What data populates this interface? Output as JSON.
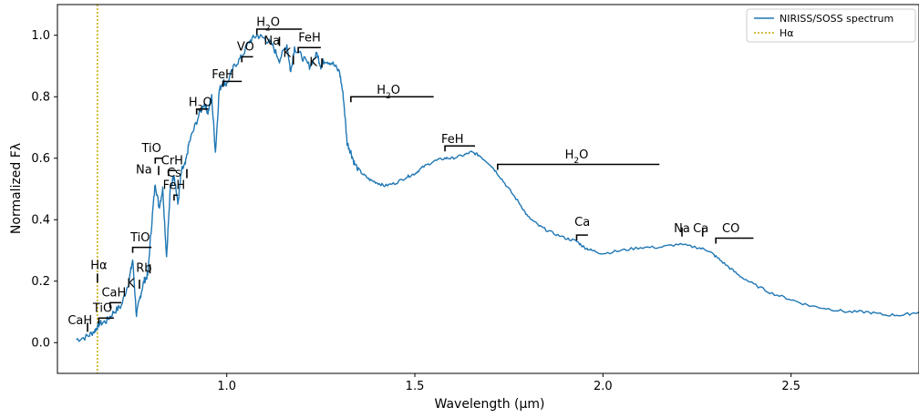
{
  "chart_data": {
    "type": "line",
    "xlabel": "Wavelength (μm)",
    "ylabel": "Normalized Fλ",
    "xlim": [
      0.55,
      2.84
    ],
    "ylim": [
      -0.1,
      1.1
    ],
    "xticks": [
      1.0,
      1.5,
      2.0,
      2.5
    ],
    "xtick_labels": [
      "1.0",
      "1.5",
      "2.0",
      "2.5"
    ],
    "yticks": [
      0.0,
      0.2,
      0.4,
      0.6,
      0.8,
      1.0
    ],
    "ytick_labels": [
      "0.0",
      "0.2",
      "0.4",
      "0.6",
      "0.8",
      "1.0"
    ],
    "grid": false,
    "legend_position": "top-right",
    "colors": {
      "spectrum": "#1f77b4",
      "halpha": "#c9a800",
      "bracket": "#000000"
    },
    "series": [
      {
        "name": "NIRISS/SOSS spectrum",
        "style": "solid",
        "x": [
          0.6,
          0.63,
          0.65,
          0.66,
          0.68,
          0.7,
          0.72,
          0.74,
          0.75,
          0.76,
          0.77,
          0.78,
          0.79,
          0.8,
          0.81,
          0.82,
          0.83,
          0.84,
          0.85,
          0.86,
          0.87,
          0.88,
          0.89,
          0.9,
          0.92,
          0.94,
          0.95,
          0.96,
          0.97,
          0.98,
          0.99,
          1.0,
          1.02,
          1.04,
          1.06,
          1.08,
          1.1,
          1.12,
          1.14,
          1.16,
          1.17,
          1.18,
          1.2,
          1.22,
          1.24,
          1.25,
          1.26,
          1.28,
          1.3,
          1.31,
          1.32,
          1.33,
          1.34,
          1.36,
          1.38,
          1.4,
          1.42,
          1.45,
          1.48,
          1.5,
          1.52,
          1.55,
          1.58,
          1.6,
          1.63,
          1.65,
          1.67,
          1.7,
          1.72,
          1.75,
          1.78,
          1.8,
          1.83,
          1.86,
          1.9,
          1.93,
          1.95,
          1.97,
          2.0,
          2.05,
          2.1,
          2.15,
          2.2,
          2.25,
          2.28,
          2.3,
          2.33,
          2.36,
          2.4,
          2.45,
          2.5,
          2.55,
          2.6,
          2.65,
          2.7,
          2.75,
          2.8,
          2.84
        ],
        "values": [
          0.01,
          0.02,
          0.04,
          0.06,
          0.07,
          0.1,
          0.12,
          0.2,
          0.27,
          0.09,
          0.15,
          0.2,
          0.22,
          0.38,
          0.52,
          0.44,
          0.5,
          0.28,
          0.5,
          0.55,
          0.45,
          0.56,
          0.58,
          0.65,
          0.72,
          0.78,
          0.75,
          0.8,
          0.62,
          0.82,
          0.85,
          0.84,
          0.9,
          0.93,
          0.98,
          1.0,
          0.99,
          0.97,
          0.92,
          0.97,
          0.88,
          0.96,
          0.93,
          0.9,
          0.94,
          0.9,
          0.92,
          0.91,
          0.88,
          0.8,
          0.65,
          0.62,
          0.58,
          0.55,
          0.53,
          0.52,
          0.51,
          0.52,
          0.54,
          0.55,
          0.57,
          0.59,
          0.6,
          0.6,
          0.61,
          0.62,
          0.61,
          0.58,
          0.55,
          0.5,
          0.45,
          0.41,
          0.38,
          0.36,
          0.34,
          0.33,
          0.31,
          0.3,
          0.29,
          0.3,
          0.31,
          0.31,
          0.32,
          0.31,
          0.3,
          0.28,
          0.25,
          0.22,
          0.19,
          0.16,
          0.14,
          0.12,
          0.11,
          0.1,
          0.1,
          0.09,
          0.09,
          0.1
        ]
      },
      {
        "name": "Hα",
        "style": "dotted",
        "vline_x": 0.6563
      }
    ],
    "annotations": [
      {
        "text": "CaH",
        "x": 0.61,
        "y": 0.06,
        "mark": "tick",
        "mx": 0.63,
        "my": 0.05
      },
      {
        "text": "TiO",
        "x": 0.67,
        "y": 0.1,
        "mark": "bracket",
        "x1": 0.66,
        "x2": 0.7,
        "my": 0.08
      },
      {
        "text": "CaH",
        "x": 0.7,
        "y": 0.15,
        "mark": "bracket",
        "x1": 0.69,
        "x2": 0.72,
        "my": 0.13
      },
      {
        "text": "Hα",
        "x": 0.66,
        "y": 0.24,
        "mark": "tick",
        "mx": 0.6563,
        "my": 0.21
      },
      {
        "text": "K",
        "x": 0.745,
        "y": 0.18,
        "mark": "tick",
        "mx": 0.768,
        "my": 0.19
      },
      {
        "text": "Rb",
        "x": 0.78,
        "y": 0.23,
        "mark": "tick",
        "mx": 0.796,
        "my": 0.24
      },
      {
        "text": "TiO",
        "x": 0.77,
        "y": 0.33,
        "mark": "bracket",
        "x1": 0.75,
        "x2": 0.8,
        "my": 0.31
      },
      {
        "text": "TiO",
        "x": 0.8,
        "y": 0.62,
        "mark": "bracket",
        "x1": 0.81,
        "x2": 0.83,
        "my": 0.6
      },
      {
        "text": "CrH",
        "x": 0.855,
        "y": 0.58,
        "mark": "bracket",
        "x1": 0.845,
        "x2": 0.865,
        "my": 0.56
      },
      {
        "text": "Na",
        "x": 0.78,
        "y": 0.55,
        "mark": "tick",
        "mx": 0.819,
        "my": 0.56
      },
      {
        "text": "FeH",
        "x": 0.86,
        "y": 0.5,
        "mark": "bracket",
        "x1": 0.86,
        "x2": 0.87,
        "my": 0.48
      },
      {
        "text": "Cs",
        "x": 0.86,
        "y": 0.54,
        "mark": "tick",
        "mx": 0.894,
        "my": 0.55
      },
      {
        "text": "H2O",
        "x": 0.93,
        "y": 0.77,
        "mark": "bracket",
        "x1": 0.92,
        "x2": 0.95,
        "my": 0.76
      },
      {
        "text": "FeH",
        "x": 0.99,
        "y": 0.86,
        "mark": "bracket",
        "x1": 0.99,
        "x2": 1.04,
        "my": 0.85
      },
      {
        "text": "VO",
        "x": 1.05,
        "y": 0.95,
        "mark": "bracket",
        "x1": 1.04,
        "x2": 1.07,
        "my": 0.93
      },
      {
        "text": "H2O",
        "x": 1.11,
        "y": 1.03,
        "mark": "bracket",
        "x1": 1.08,
        "x2": 1.2,
        "my": 1.02
      },
      {
        "text": "Na",
        "x": 1.12,
        "y": 0.97,
        "mark": "tick",
        "mx": 1.14,
        "my": 0.98
      },
      {
        "text": "K",
        "x": 1.16,
        "y": 0.93,
        "mark": "tick",
        "mx": 1.177,
        "my": 0.92
      },
      {
        "text": "FeH",
        "x": 1.22,
        "y": 0.98,
        "mark": "bracket",
        "x1": 1.19,
        "x2": 1.25,
        "my": 0.96
      },
      {
        "text": "K",
        "x": 1.23,
        "y": 0.9,
        "mark": "tick",
        "mx": 1.253,
        "my": 0.91
      },
      {
        "text": "H2O",
        "x": 1.43,
        "y": 0.81,
        "mark": "bracket",
        "x1": 1.33,
        "x2": 1.55,
        "my": 0.8
      },
      {
        "text": "FeH",
        "x": 1.6,
        "y": 0.65,
        "mark": "bracket",
        "x1": 1.58,
        "x2": 1.66,
        "my": 0.64
      },
      {
        "text": "H2O",
        "x": 1.93,
        "y": 0.6,
        "mark": "bracket",
        "x1": 1.72,
        "x2": 2.15,
        "my": 0.58
      },
      {
        "text": "Ca",
        "x": 1.945,
        "y": 0.38,
        "mark": "bracket",
        "x1": 1.93,
        "x2": 1.96,
        "my": 0.35
      },
      {
        "text": "Na",
        "x": 2.21,
        "y": 0.36,
        "mark": "tick",
        "mx": 2.21,
        "my": 0.36
      },
      {
        "text": "Ca",
        "x": 2.26,
        "y": 0.36,
        "mark": "tick",
        "mx": 2.265,
        "my": 0.36
      },
      {
        "text": "CO",
        "x": 2.34,
        "y": 0.36,
        "mark": "bracket",
        "x1": 2.3,
        "x2": 2.4,
        "my": 0.34
      }
    ]
  }
}
